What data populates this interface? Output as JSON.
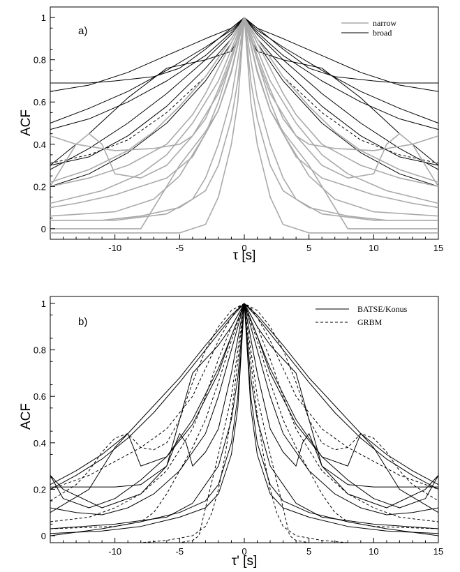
{
  "chart_data": [
    {
      "type": "line",
      "panel_label": "a)",
      "xlabel": "τ [s]",
      "ylabel": "ACF",
      "xlim": [
        -15,
        15
      ],
      "ylim": [
        -0.05,
        1.05
      ],
      "xticks": [
        -10,
        -5,
        0,
        5,
        10,
        15
      ],
      "yticks": [
        0,
        0.2,
        0.4,
        0.6,
        0.8,
        1
      ],
      "xtick_labels": [
        "-10",
        "-5",
        "0",
        "5",
        "10",
        "15"
      ],
      "ytick_labels": [
        "0",
        "0.2",
        "0.4",
        "0.6",
        "0.8",
        "1"
      ],
      "grid": false,
      "legend_position": "top-right",
      "legend": [
        {
          "label": "narrow",
          "color": "#aaaaaa",
          "dash": "solid"
        },
        {
          "label": "broad",
          "color": "#000000",
          "dash": "solid"
        }
      ],
      "series": [
        {
          "group": "broad",
          "color": "#000000",
          "x": [
            0,
            1,
            3,
            6,
            9,
            12,
            15
          ],
          "y": [
            1,
            0.95,
            0.9,
            0.82,
            0.74,
            0.68,
            0.65
          ]
        },
        {
          "group": "broad",
          "color": "#000000",
          "x": [
            0,
            1,
            3,
            5,
            7,
            10,
            12,
            15
          ],
          "y": [
            1,
            0.95,
            0.85,
            0.76,
            0.72,
            0.7,
            0.69,
            0.69
          ]
        },
        {
          "group": "broad",
          "color": "#000000",
          "x": [
            0,
            1,
            3,
            6,
            9,
            12,
            15
          ],
          "y": [
            1,
            0.94,
            0.86,
            0.75,
            0.65,
            0.57,
            0.5
          ]
        },
        {
          "group": "broad",
          "color": "#000000",
          "x": [
            0,
            1,
            3,
            6,
            9,
            12,
            15
          ],
          "y": [
            1,
            0.93,
            0.82,
            0.7,
            0.6,
            0.52,
            0.47
          ]
        },
        {
          "group": "broad",
          "color": "#000000",
          "x": [
            0,
            1,
            3,
            6,
            9,
            12,
            15
          ],
          "y": [
            1,
            0.92,
            0.8,
            0.64,
            0.5,
            0.38,
            0.28
          ]
        },
        {
          "group": "broad",
          "color": "#000000",
          "x": [
            0,
            1,
            3,
            6,
            9,
            12,
            15
          ],
          "y": [
            1,
            0.9,
            0.76,
            0.58,
            0.44,
            0.34,
            0.3
          ]
        },
        {
          "group": "broad",
          "color": "#000000",
          "x": [
            0,
            1,
            3,
            6,
            9,
            12,
            15
          ],
          "y": [
            1,
            0.88,
            0.7,
            0.5,
            0.36,
            0.26,
            0.2
          ]
        },
        {
          "group": "broad",
          "color": "#000000",
          "dash": "dashed",
          "x": [
            0,
            1,
            3,
            6,
            9,
            12,
            15
          ],
          "y": [
            1,
            0.9,
            0.72,
            0.55,
            0.42,
            0.35,
            0.31
          ]
        },
        {
          "group": "broad",
          "color": "#000000",
          "x": [
            0,
            0.5,
            1,
            3,
            6,
            9,
            12,
            15
          ],
          "y": [
            1,
            0.9,
            0.84,
            0.8,
            0.76,
            0.62,
            0.45,
            0.3
          ]
        },
        {
          "group": "narrow",
          "color": "#aaaaaa",
          "x": [
            0,
            0.5,
            1,
            2,
            3,
            5,
            8,
            15
          ],
          "y": [
            1,
            0.6,
            0.4,
            0.15,
            0.02,
            -0.02,
            -0.02,
            -0.02
          ]
        },
        {
          "group": "narrow",
          "color": "#aaaaaa",
          "x": [
            0,
            0.5,
            1,
            2,
            3,
            4,
            6,
            10,
            15
          ],
          "y": [
            1,
            0.8,
            0.62,
            0.4,
            0.24,
            0.14,
            0.07,
            0.04,
            0.04
          ]
        },
        {
          "group": "narrow",
          "color": "#aaaaaa",
          "x": [
            0,
            1,
            2,
            3,
            5,
            7,
            10,
            15
          ],
          "y": [
            1,
            0.8,
            0.6,
            0.45,
            0.25,
            0.14,
            0.08,
            0.06
          ]
        },
        {
          "group": "narrow",
          "color": "#aaaaaa",
          "x": [
            0,
            1,
            2,
            4,
            6,
            8,
            11,
            15
          ],
          "y": [
            1,
            0.85,
            0.7,
            0.5,
            0.35,
            0.26,
            0.18,
            0.12
          ]
        },
        {
          "group": "narrow",
          "color": "#aaaaaa",
          "x": [
            0,
            1,
            3,
            5,
            7,
            9,
            12,
            15
          ],
          "y": [
            1,
            0.9,
            0.72,
            0.58,
            0.46,
            0.37,
            0.28,
            0.22
          ]
        },
        {
          "group": "narrow",
          "color": "#aaaaaa",
          "x": [
            0,
            1,
            2,
            3,
            4,
            5,
            7,
            10,
            13,
            15
          ],
          "y": [
            1,
            0.82,
            0.66,
            0.52,
            0.44,
            0.4,
            0.38,
            0.37,
            0.4,
            0.44
          ]
        },
        {
          "group": "narrow",
          "color": "#aaaaaa",
          "x": [
            0,
            1,
            2,
            4,
            6,
            8,
            10,
            11,
            12,
            13,
            15
          ],
          "y": [
            1,
            0.8,
            0.64,
            0.44,
            0.3,
            0.24,
            0.26,
            0.4,
            0.45,
            0.4,
            0.2
          ]
        },
        {
          "group": "narrow",
          "color": "#aaaaaa",
          "x": [
            0,
            1,
            2,
            4,
            6,
            8,
            10,
            13,
            15
          ],
          "y": [
            1,
            0.75,
            0.56,
            0.34,
            0.24,
            0.2,
            0.16,
            0.12,
            0.1
          ]
        },
        {
          "group": "narrow",
          "color": "#aaaaaa",
          "x": [
            0,
            1,
            2,
            3,
            4,
            5,
            6,
            7,
            8,
            15
          ],
          "y": [
            1,
            0.74,
            0.56,
            0.46,
            0.38,
            0.3,
            0.2,
            0.1,
            0.0,
            0.0
          ]
        },
        {
          "group": "narrow",
          "color": "#aaaaaa",
          "x": [
            0,
            1,
            2,
            3,
            4,
            6,
            9,
            12,
            15
          ],
          "y": [
            1,
            0.88,
            0.76,
            0.64,
            0.54,
            0.4,
            0.3,
            0.24,
            0.2
          ]
        },
        {
          "group": "narrow",
          "color": "#aaaaaa",
          "x": [
            0,
            0.5,
            1,
            2,
            3,
            5,
            8,
            11,
            15
          ],
          "y": [
            1,
            0.7,
            0.52,
            0.3,
            0.18,
            0.1,
            0.06,
            0.04,
            0.04
          ]
        }
      ]
    },
    {
      "type": "line",
      "panel_label": "b)",
      "xlabel": "τ' [s]",
      "ylabel": "ACF",
      "xlim": [
        -15,
        15
      ],
      "ylim": [
        -0.03,
        1.03
      ],
      "xticks": [
        -10,
        -5,
        0,
        5,
        10,
        15
      ],
      "yticks": [
        0,
        0.2,
        0.4,
        0.6,
        0.8,
        1
      ],
      "xtick_labels": [
        "-10",
        "-5",
        "0",
        "5",
        "10",
        "15"
      ],
      "ytick_labels": [
        "0",
        "0.2",
        "0.4",
        "0.6",
        "0.8",
        "1"
      ],
      "grid": false,
      "legend_position": "top-right",
      "legend": [
        {
          "label": "BATSE/Konus",
          "color": "#000000",
          "dash": "solid"
        },
        {
          "label": "GRBM",
          "color": "#000000",
          "dash": "dashed"
        }
      ],
      "series": [
        {
          "group": "BATSE/Konus",
          "color": "#000000",
          "x": [
            0,
            1,
            3,
            5,
            7,
            9,
            11,
            13,
            15
          ],
          "y": [
            1,
            0.95,
            0.82,
            0.68,
            0.56,
            0.44,
            0.35,
            0.28,
            0.22
          ]
        },
        {
          "group": "BATSE/Konus",
          "color": "#000000",
          "x": [
            0,
            1,
            3,
            5,
            7,
            9,
            11,
            13,
            15
          ],
          "y": [
            1,
            0.94,
            0.8,
            0.66,
            0.53,
            0.42,
            0.33,
            0.26,
            0.2
          ]
        },
        {
          "group": "BATSE/Konus",
          "color": "#000000",
          "x": [
            0,
            1,
            2,
            3,
            4,
            5,
            6,
            8,
            10,
            15
          ],
          "y": [
            1,
            0.9,
            0.82,
            0.76,
            0.7,
            0.5,
            0.3,
            0.22,
            0.21,
            0.21
          ]
        },
        {
          "group": "BATSE/Konus",
          "color": "#000000",
          "x": [
            0,
            1,
            2,
            4,
            6,
            8,
            9,
            10,
            12,
            15
          ],
          "y": [
            1,
            0.86,
            0.72,
            0.5,
            0.34,
            0.3,
            0.44,
            0.38,
            0.2,
            0.1
          ]
        },
        {
          "group": "BATSE/Konus",
          "color": "#000000",
          "x": [
            0,
            1,
            2,
            3,
            4,
            4.5,
            5,
            6,
            8,
            11,
            14,
            15
          ],
          "y": [
            1,
            0.7,
            0.46,
            0.36,
            0.3,
            0.4,
            0.44,
            0.3,
            0.18,
            0.12,
            0.2,
            0.26
          ]
        },
        {
          "group": "BATSE/Konus",
          "color": "#000000",
          "x": [
            0,
            0.5,
            1,
            2,
            3,
            5,
            8,
            11,
            15
          ],
          "y": [
            1,
            0.6,
            0.4,
            0.22,
            0.15,
            0.1,
            0.06,
            0.03,
            0.0
          ]
        },
        {
          "group": "BATSE/Konus",
          "color": "#000000",
          "x": [
            0,
            0.5,
            1,
            2,
            3,
            5,
            8,
            11,
            15
          ],
          "y": [
            1,
            0.55,
            0.35,
            0.18,
            0.12,
            0.08,
            0.04,
            0.02,
            0.01
          ]
        },
        {
          "group": "BATSE/Konus",
          "color": "#000000",
          "x": [
            0,
            1,
            2,
            3,
            5,
            7,
            9,
            11,
            13,
            15
          ],
          "y": [
            1,
            0.8,
            0.6,
            0.44,
            0.28,
            0.18,
            0.12,
            0.09,
            0.1,
            0.12
          ]
        },
        {
          "group": "BATSE/Konus",
          "color": "#000000",
          "x": [
            0,
            1,
            2,
            4,
            6,
            8,
            10,
            12,
            14,
            15
          ],
          "y": [
            1,
            0.86,
            0.7,
            0.48,
            0.34,
            0.24,
            0.16,
            0.12,
            0.16,
            0.26
          ]
        },
        {
          "group": "BATSE/Konus",
          "color": "#000000",
          "x": [
            0,
            0.5,
            1,
            2,
            3,
            4,
            6,
            10,
            15
          ],
          "y": [
            1,
            0.68,
            0.5,
            0.3,
            0.22,
            0.14,
            0.08,
            0.05,
            0.03
          ]
        },
        {
          "group": "GRBM",
          "color": "#000000",
          "dash": "dashed",
          "x": [
            0,
            0.5,
            1,
            2,
            3,
            4,
            6,
            8,
            10,
            12,
            15
          ],
          "y": [
            1,
            0.98,
            0.94,
            0.84,
            0.72,
            0.6,
            0.46,
            0.38,
            0.32,
            0.26,
            0.2
          ]
        },
        {
          "group": "GRBM",
          "color": "#000000",
          "dash": "dashed",
          "x": [
            0,
            1,
            2,
            3,
            4,
            5,
            6,
            7,
            8,
            9,
            10,
            11,
            12,
            13,
            15
          ],
          "y": [
            1,
            0.97,
            0.9,
            0.8,
            0.66,
            0.5,
            0.4,
            0.37,
            0.38,
            0.44,
            0.42,
            0.36,
            0.28,
            0.22,
            0.15
          ]
        },
        {
          "group": "GRBM",
          "color": "#000000",
          "dash": "dashed",
          "x": [
            0,
            0.5,
            1,
            2,
            3,
            3.5,
            4,
            5,
            7,
            10,
            15
          ],
          "y": [
            1,
            0.8,
            0.6,
            0.35,
            0.12,
            0.0,
            -0.02,
            -0.03,
            -0.03,
            -0.03,
            -0.03
          ]
        },
        {
          "group": "GRBM",
          "color": "#000000",
          "dash": "dashed",
          "x": [
            0,
            1,
            2,
            3,
            4,
            5,
            6,
            7,
            8,
            10,
            15
          ],
          "y": [
            1,
            0.84,
            0.66,
            0.5,
            0.38,
            0.28,
            0.18,
            0.1,
            0.06,
            0.04,
            0.03
          ]
        },
        {
          "group": "GRBM",
          "color": "#000000",
          "dash": "dashed",
          "x": [
            0,
            0.5,
            1,
            1.5,
            2,
            2.5,
            3,
            4,
            6,
            8,
            15
          ],
          "y": [
            1,
            0.75,
            0.52,
            0.34,
            0.2,
            0.1,
            0.04,
            0.0,
            -0.02,
            -0.03,
            -0.03
          ]
        },
        {
          "group": "GRBM",
          "color": "#000000",
          "dash": "dashed",
          "x": [
            0,
            1,
            2,
            3,
            4,
            6,
            8,
            10,
            12,
            15
          ],
          "y": [
            1,
            0.9,
            0.76,
            0.6,
            0.46,
            0.28,
            0.18,
            0.12,
            0.08,
            0.06
          ]
        }
      ]
    }
  ]
}
